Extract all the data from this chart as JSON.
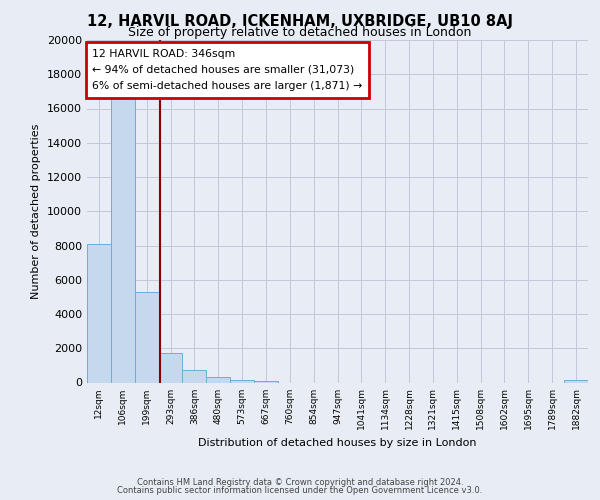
{
  "title": "12, HARVIL ROAD, ICKENHAM, UXBRIDGE, UB10 8AJ",
  "subtitle": "Size of property relative to detached houses in London",
  "xlabel": "Distribution of detached houses by size in London",
  "ylabel": "Number of detached properties",
  "bar_categories": [
    "12sqm",
    "106sqm",
    "199sqm",
    "293sqm",
    "386sqm",
    "480sqm",
    "573sqm",
    "667sqm",
    "760sqm",
    "854sqm",
    "947sqm",
    "1041sqm",
    "1134sqm",
    "1228sqm",
    "1321sqm",
    "1415sqm",
    "1508sqm",
    "1602sqm",
    "1695sqm",
    "1789sqm",
    "1882sqm"
  ],
  "bar_values": [
    8100,
    16600,
    5300,
    1750,
    750,
    300,
    175,
    100,
    0,
    0,
    0,
    0,
    0,
    0,
    0,
    0,
    0,
    0,
    0,
    0,
    150
  ],
  "bar_color": "#c5d8ee",
  "bar_edge_color": "#6baed6",
  "bg_color": "#e8edf5",
  "plot_bg_color": "#e8edf5",
  "grid_color": "#c0c8d8",
  "vline_color": "#8b0000",
  "vline_x": 2.57,
  "annotation_line1": "12 HARVIL ROAD: 346sqm",
  "annotation_line2": "← 94% of detached houses are smaller (31,073)",
  "annotation_line3": "6% of semi-detached houses are larger (1,871) →",
  "annotation_box_color": "#ffffff",
  "annotation_border_color": "#cc0000",
  "ylim": [
    0,
    20000
  ],
  "yticks": [
    0,
    2000,
    4000,
    6000,
    8000,
    10000,
    12000,
    14000,
    16000,
    18000,
    20000
  ],
  "footer_line1": "Contains HM Land Registry data © Crown copyright and database right 2024.",
  "footer_line2": "Contains public sector information licensed under the Open Government Licence v3.0."
}
